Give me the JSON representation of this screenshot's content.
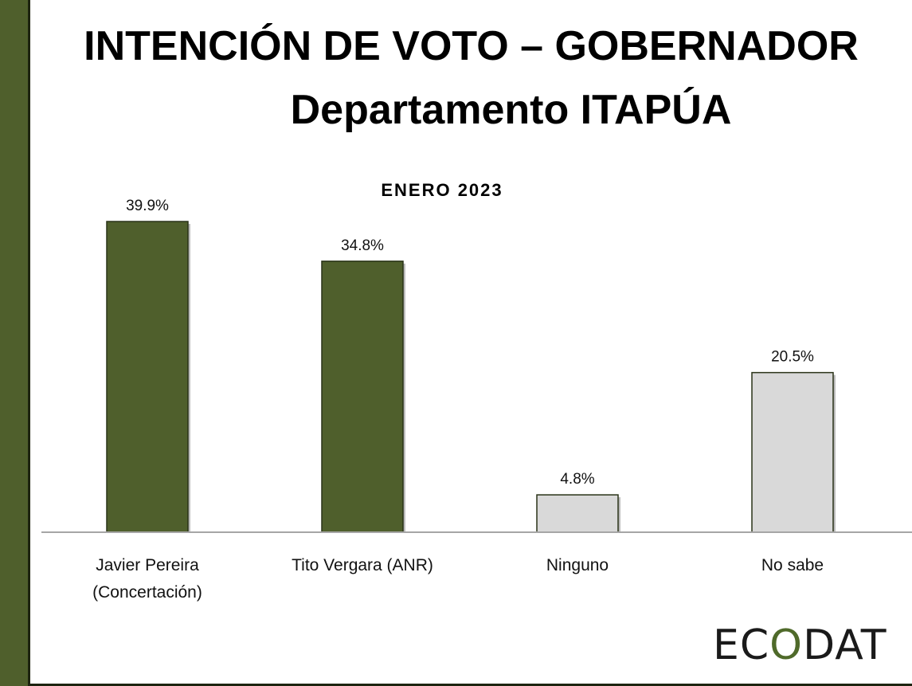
{
  "title_line1": "INTENCIÓN DE VOTO – GOBERNADOR",
  "title_line2": "Departamento ITAPÚA",
  "logo": {
    "part1": "EC",
    "part2": "O",
    "part3": "DAT"
  },
  "colors": {
    "sidebar": "#4f5f2c",
    "candidate_bar": "#4f5f2c",
    "other_bar": "#d9d9d9",
    "logo_accent": "#4f6a2a"
  },
  "chart_data": {
    "type": "bar",
    "title": "ENERO 2023",
    "categories": [
      [
        "Javier Pereira",
        "(Concertación)"
      ],
      [
        "Tito Vergara (ANR)"
      ],
      [
        "Ninguno"
      ],
      [
        "No sabe"
      ]
    ],
    "values": [
      39.9,
      34.8,
      4.8,
      20.5
    ],
    "value_labels": [
      "39.9%",
      "34.8%",
      "4.8%",
      "20.5%"
    ],
    "bar_colors": [
      "#4f5f2c",
      "#4f5f2c",
      "#d9d9d9",
      "#d9d9d9"
    ],
    "ylim": [
      0,
      40
    ],
    "grid": false,
    "legend": "none"
  }
}
